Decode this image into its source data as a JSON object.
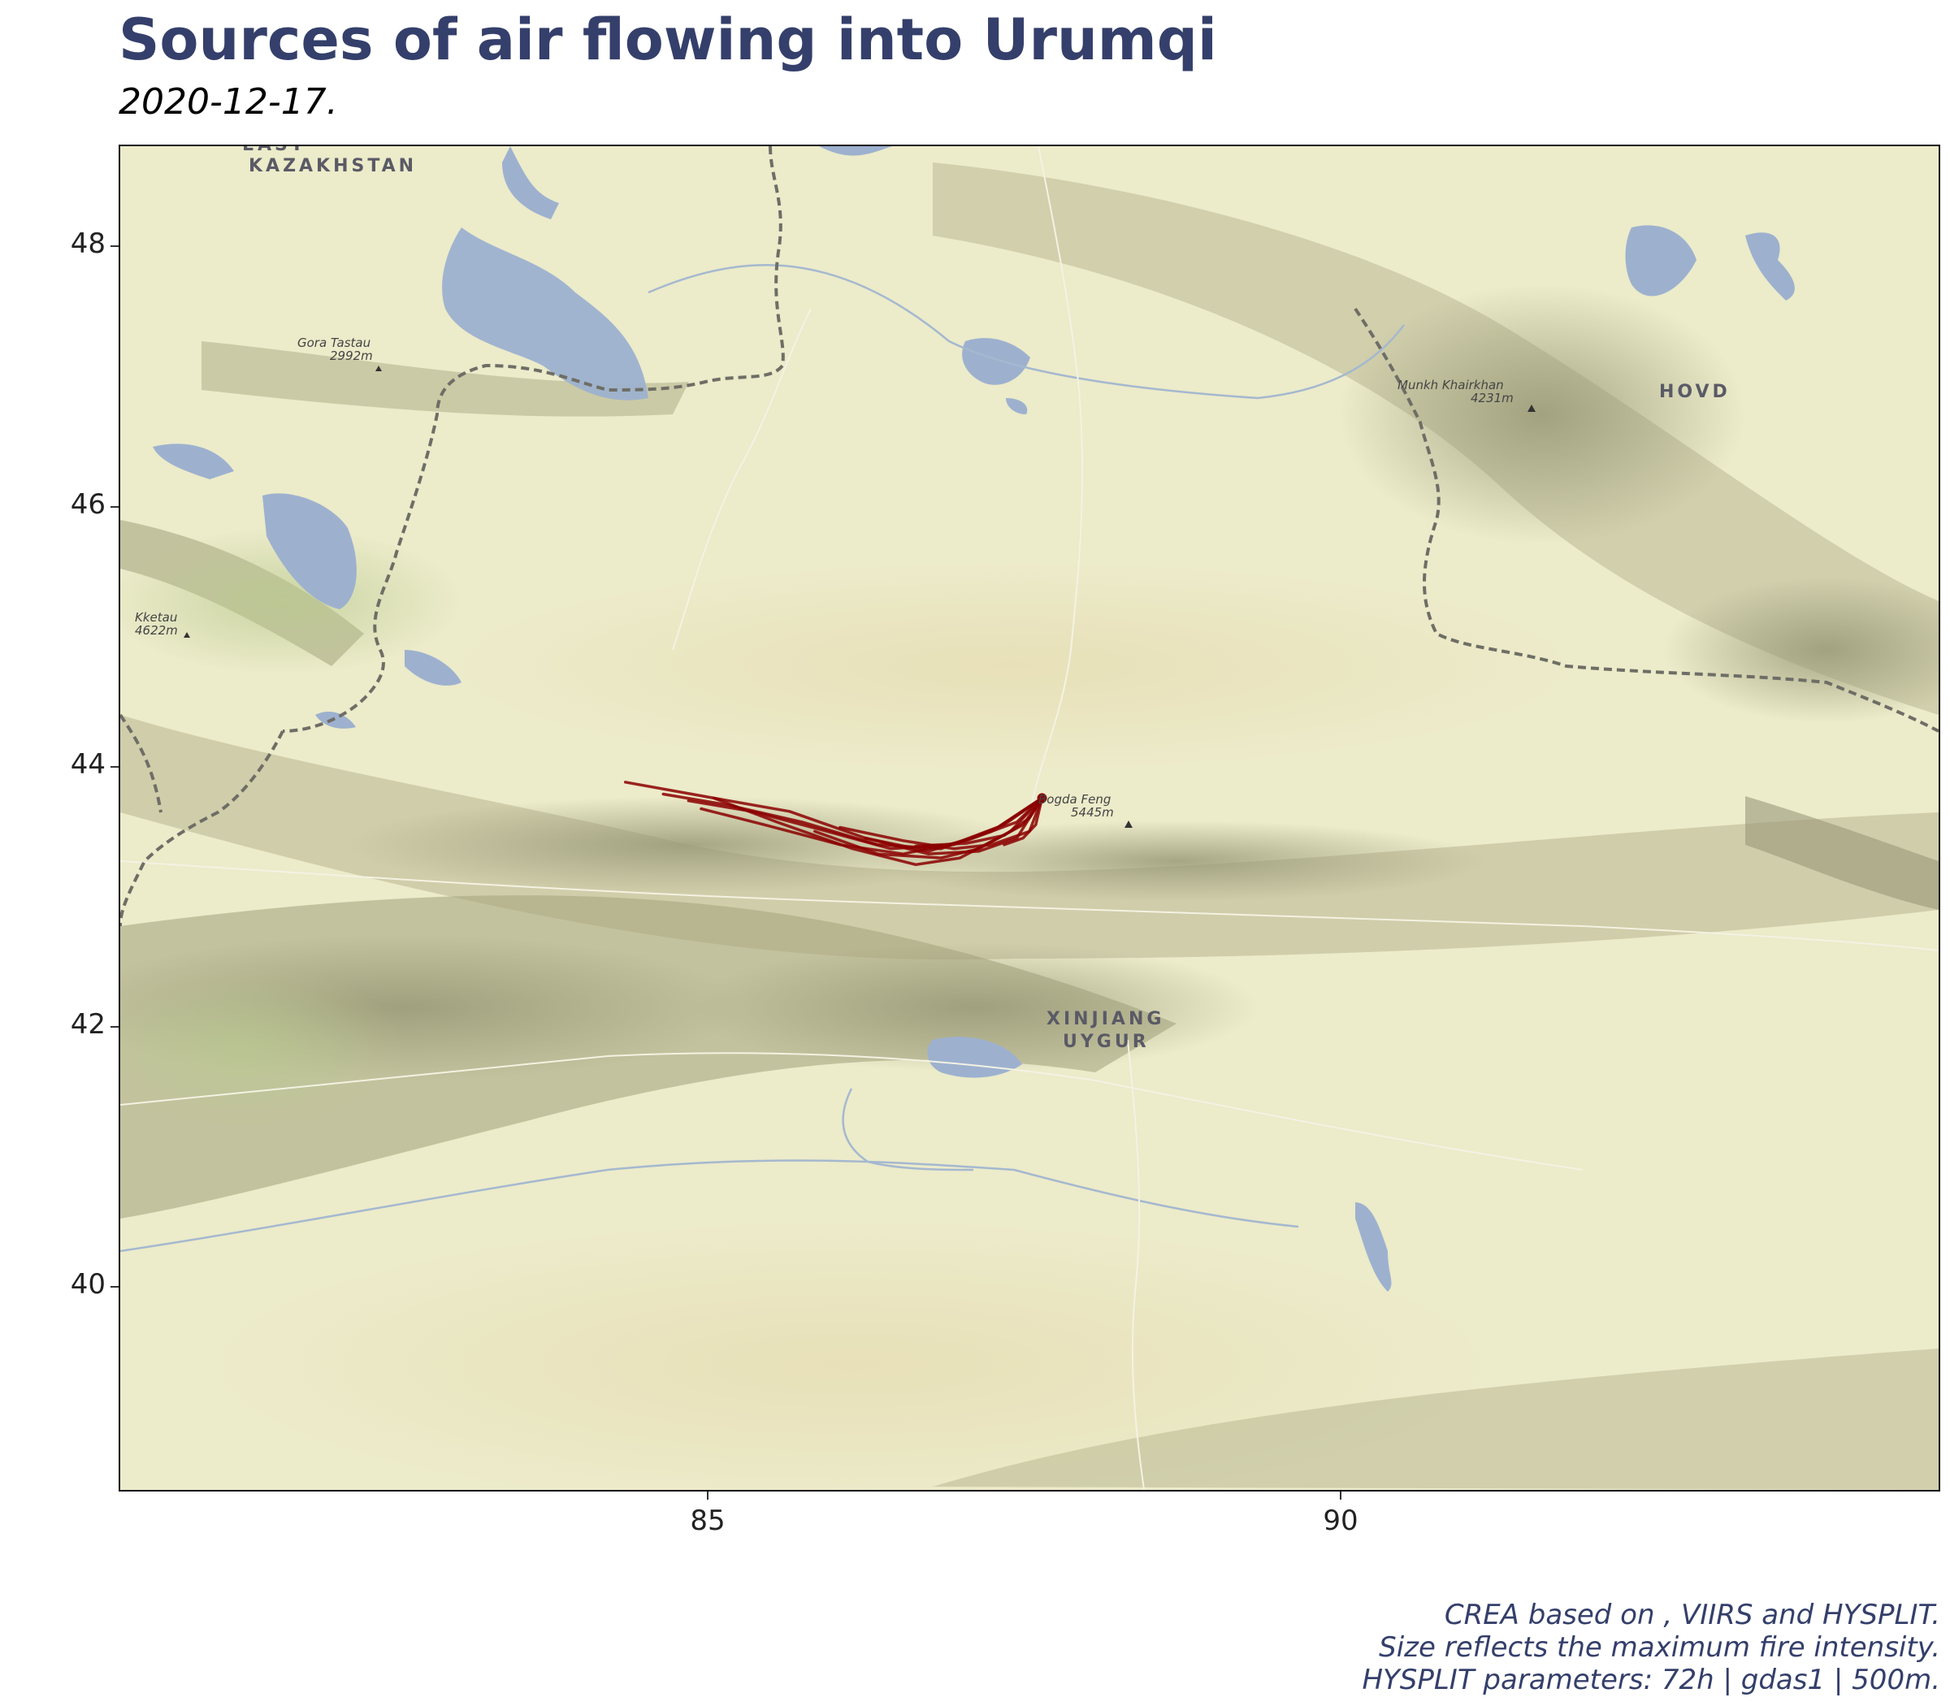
{
  "header": {
    "title": "Sources of air flowing into Urumqi",
    "subtitle": "2020-12-17."
  },
  "map": {
    "basemap": "terrain",
    "lon_range": [
      80.3,
      94.7
    ],
    "lat_range": [
      38.6,
      48.7
    ],
    "y_ticks": [
      "48",
      "46",
      "44",
      "42",
      "40"
    ],
    "x_ticks": [
      "85",
      "90"
    ],
    "labels": {
      "east_kazakhstan": "EAST",
      "kazakhstan": "KAZAKHSTAN",
      "hovd": "HOVD",
      "xinjiang": "XINJIANG",
      "uygur": "UYGUR",
      "gora_tastau": "Gora Tastau",
      "gora_tastau_elev": "2992m",
      "kketau": "Kketau",
      "kketau_elev": "4622m",
      "munkh": "Munkh Khairkhan",
      "munkh_elev": "4231m",
      "bogda": "Bogda Feng",
      "bogda_elev": "5445m"
    },
    "trajectory_color": "#8b0000",
    "receptor": {
      "name": "Urumqi",
      "lon": 87.6,
      "lat": 43.8
    },
    "trajectories": [
      [
        [
          87.6,
          43.8
        ],
        [
          87.2,
          43.55
        ],
        [
          86.7,
          43.4
        ],
        [
          86.2,
          43.5
        ],
        [
          85.6,
          43.7
        ],
        [
          85.0,
          43.8
        ],
        [
          84.3,
          43.92
        ]
      ],
      [
        [
          87.6,
          43.8
        ],
        [
          87.3,
          43.6
        ],
        [
          86.8,
          43.42
        ],
        [
          86.3,
          43.45
        ],
        [
          85.7,
          43.62
        ],
        [
          85.1,
          43.75
        ],
        [
          84.6,
          43.83
        ]
      ],
      [
        [
          87.6,
          43.8
        ],
        [
          87.25,
          43.58
        ],
        [
          86.9,
          43.45
        ],
        [
          86.4,
          43.42
        ],
        [
          85.9,
          43.55
        ],
        [
          85.3,
          43.7
        ],
        [
          84.8,
          43.78
        ]
      ],
      [
        [
          87.6,
          43.8
        ],
        [
          87.4,
          43.62
        ],
        [
          87.0,
          43.48
        ],
        [
          86.5,
          43.38
        ],
        [
          86.0,
          43.45
        ],
        [
          85.4,
          43.6
        ],
        [
          84.9,
          43.72
        ]
      ],
      [
        [
          87.6,
          43.8
        ],
        [
          87.35,
          43.55
        ],
        [
          86.95,
          43.35
        ],
        [
          86.6,
          43.3
        ],
        [
          86.1,
          43.42
        ],
        [
          85.5,
          43.62
        ],
        [
          85.0,
          43.8
        ]
      ],
      [
        [
          87.6,
          43.8
        ],
        [
          87.45,
          43.6
        ],
        [
          87.1,
          43.42
        ],
        [
          86.8,
          43.35
        ],
        [
          86.3,
          43.38
        ],
        [
          85.8,
          43.55
        ]
      ],
      [
        [
          87.6,
          43.8
        ],
        [
          87.5,
          43.55
        ],
        [
          87.2,
          43.45
        ],
        [
          86.9,
          43.42
        ],
        [
          86.5,
          43.48
        ],
        [
          86.0,
          43.58
        ]
      ],
      [
        [
          87.6,
          43.8
        ],
        [
          87.4,
          43.5
        ],
        [
          87.1,
          43.4
        ],
        [
          86.7,
          43.38
        ],
        [
          86.2,
          43.5
        ]
      ],
      [
        [
          87.6,
          43.8
        ],
        [
          87.5,
          43.65
        ],
        [
          87.3,
          43.52
        ],
        [
          87.0,
          43.46
        ],
        [
          86.6,
          43.44
        ]
      ],
      [
        [
          87.6,
          43.8
        ],
        [
          87.55,
          43.6
        ],
        [
          87.45,
          43.5
        ],
        [
          87.3,
          43.45
        ]
      ]
    ]
  },
  "caption": {
    "line1": "CREA based on , VIIRS and HYSPLIT.",
    "line2": "Size reflects the maximum fire intensity.",
    "line3": "HYSPLIT parameters: 72h | gdas1 | 500m."
  }
}
